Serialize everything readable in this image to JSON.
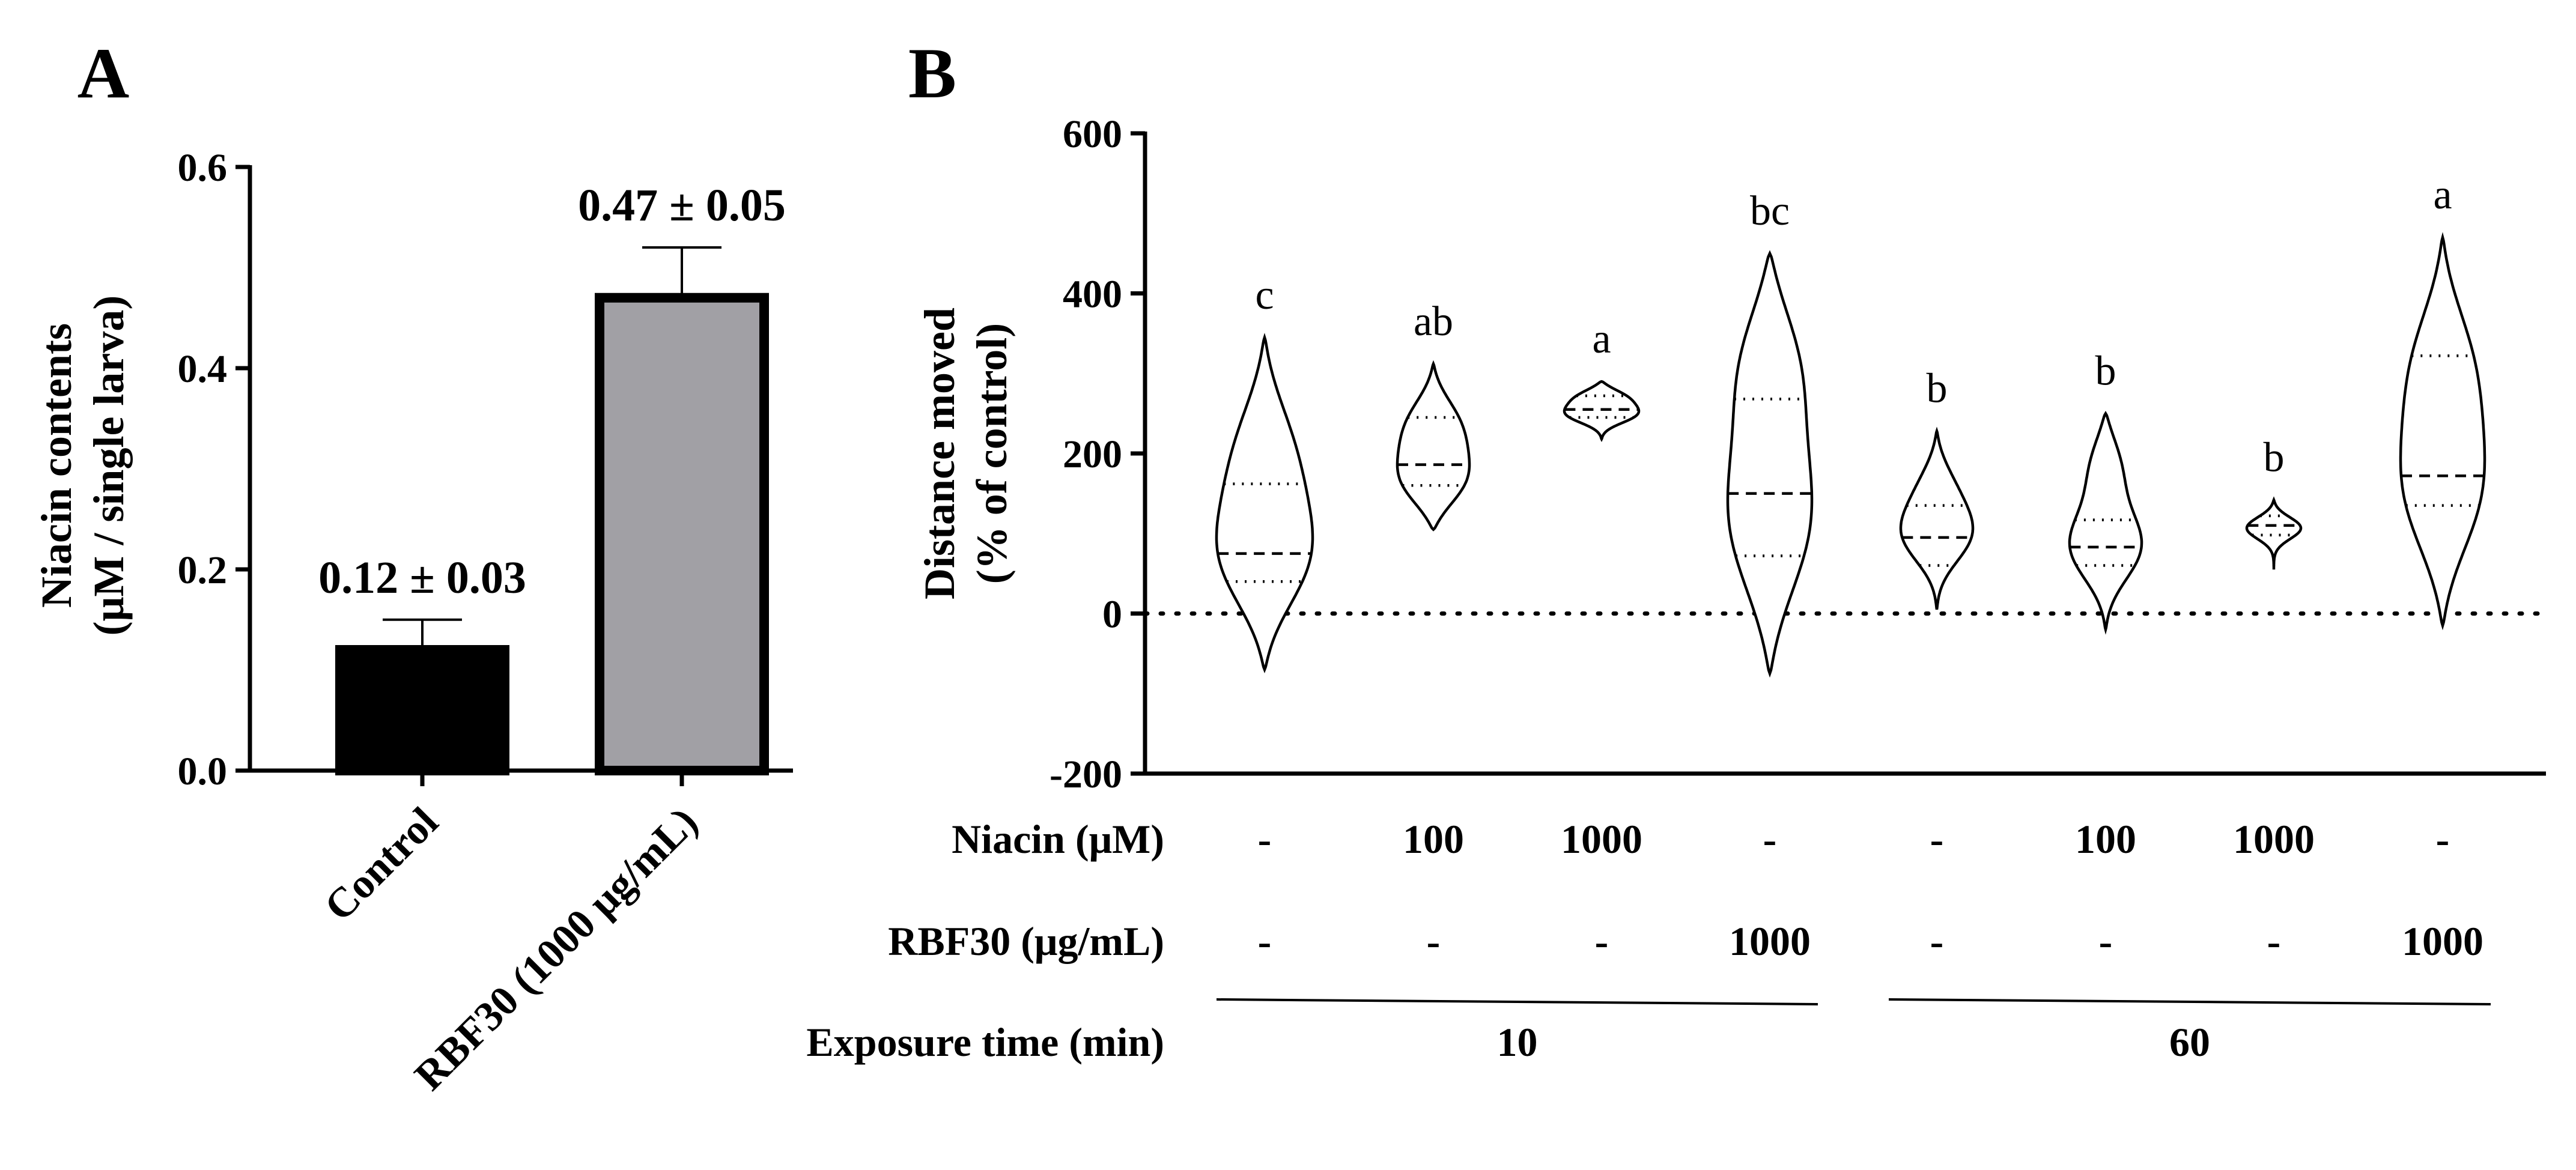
{
  "chart_data": [
    {
      "panel": "A",
      "type": "bar",
      "categories": [
        "Control",
        "RBF30 (1000 μg/mL)"
      ],
      "values": [
        0.12,
        0.47
      ],
      "errors": [
        0.03,
        0.05
      ],
      "value_labels": [
        "0.12 ± 0.03",
        "0.47 ± 0.05"
      ],
      "colors": [
        "#000000",
        "#a1a0a5"
      ],
      "ylabel_line1": "Niacin contents",
      "ylabel_line2": "(μM / single larva)",
      "ylim": [
        0,
        0.6
      ],
      "yticks": [
        "0.0",
        "0.2",
        "0.4",
        "0.6"
      ]
    },
    {
      "panel": "B",
      "type": "violin",
      "ylabel_line1": "Distance moved",
      "ylabel_line2": "(% of control)",
      "ylim": [
        -200,
        600
      ],
      "yticks": [
        "-200",
        "0",
        "200",
        "400",
        "600"
      ],
      "reference_line": 0,
      "groups": [
        {
          "sig": "c",
          "niacin": "-",
          "rbf30": "-",
          "min": -70,
          "max": 345,
          "q1": 40,
          "median": 75,
          "q3": 162,
          "modes": [
            [
              60,
              80
            ],
            [
              250,
              22
            ],
            [
              180,
              40
            ]
          ]
        },
        {
          "sig": "ab",
          "niacin": "100",
          "rbf30": "-",
          "min": 105,
          "max": 312,
          "q1": 160,
          "median": 186,
          "q3": 245,
          "modes": [
            [
              158,
              60
            ],
            [
              250,
              35
            ],
            [
              210,
              30
            ]
          ]
        },
        {
          "sig": "a",
          "niacin": "1000",
          "rbf30": "-",
          "min": 218,
          "max": 290,
          "q1": 245,
          "median": 255,
          "q3": 272,
          "modes": [
            [
              248,
              62
            ],
            [
              272,
              50
            ]
          ]
        },
        {
          "sig": "bc",
          "niacin": "-",
          "rbf30": "1000",
          "min": -75,
          "max": 450,
          "q1": 72,
          "median": 150,
          "q3": 268,
          "modes": [
            [
              320,
              70
            ],
            [
              140,
              60
            ],
            [
              50,
              40
            ]
          ]
        },
        {
          "sig": "b",
          "niacin": "-",
          "rbf30": "-",
          "min": 5,
          "max": 228,
          "q1": 60,
          "median": 95,
          "q3": 135,
          "modes": [
            [
              95,
              60
            ],
            [
              160,
              30
            ]
          ]
        },
        {
          "sig": "b",
          "niacin": "100",
          "rbf30": "-",
          "min": -20,
          "max": 250,
          "q1": 60,
          "median": 83,
          "q3": 117,
          "modes": [
            [
              80,
              60
            ],
            [
              190,
              30
            ]
          ]
        },
        {
          "sig": "b",
          "niacin": "1000",
          "rbf30": "-",
          "min": 55,
          "max": 142,
          "q1": 98,
          "median": 110,
          "q3": 122,
          "modes": [
            [
              108,
              45
            ]
          ]
        },
        {
          "sig": "a",
          "niacin": "-",
          "rbf30": "1000",
          "min": -15,
          "max": 470,
          "q1": 135,
          "median": 172,
          "q3": 322,
          "modes": [
            [
              130,
              70
            ],
            [
              330,
              55
            ],
            [
              230,
              30
            ]
          ]
        }
      ],
      "row_labels": {
        "niacin": "Niacin (μM)",
        "rbf30": "RBF30 (μg/mL)",
        "exposure": "Exposure time (min)"
      },
      "exposure_groups": [
        {
          "label": "10",
          "from": 0,
          "to": 3
        },
        {
          "label": "60",
          "from": 4,
          "to": 7
        }
      ]
    }
  ]
}
